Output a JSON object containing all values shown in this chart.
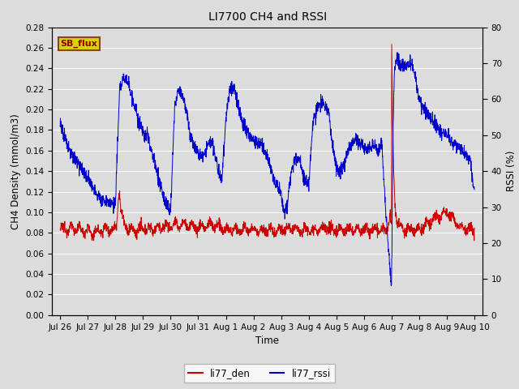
{
  "title": "LI7700 CH4 and RSSI",
  "ylabel_left": "CH4 Density (mmol/m3)",
  "ylabel_right": "RSSI (%)",
  "xlabel": "Time",
  "ylim_left": [
    0.0,
    0.28
  ],
  "ylim_right": [
    0,
    80
  ],
  "yticks_left": [
    0.0,
    0.02,
    0.04,
    0.06,
    0.08,
    0.1,
    0.12,
    0.14,
    0.16,
    0.18,
    0.2,
    0.22,
    0.24,
    0.26,
    0.28
  ],
  "yticks_right": [
    0,
    10,
    20,
    30,
    40,
    50,
    60,
    70,
    80
  ],
  "bg_color": "#dcdcdc",
  "grid_color": "#ffffff",
  "line_ch4_color": "#cc0000",
  "line_rssi_color": "#0000cc",
  "legend_label_ch4": "li77_den",
  "legend_label_rssi": "li77_rssi",
  "annotation_text": "SB_flux",
  "annotation_bg": "#d4d400",
  "annotation_border": "#8B4513",
  "rssi_key_t": [
    0,
    0.15,
    0.4,
    0.7,
    1.0,
    1.3,
    1.5,
    1.7,
    2.0,
    2.15,
    2.3,
    2.5,
    2.8,
    3.0,
    3.15,
    3.3,
    3.6,
    3.8,
    4.0,
    4.15,
    4.3,
    4.5,
    4.7,
    4.85,
    5.0,
    5.2,
    5.35,
    5.5,
    5.7,
    5.85,
    6.0,
    6.15,
    6.3,
    6.5,
    6.65,
    6.8,
    7.0,
    7.15,
    7.3,
    7.5,
    7.65,
    7.8,
    8.0,
    8.1,
    8.2,
    8.35,
    8.5,
    8.65,
    8.8,
    9.0,
    9.15,
    9.3,
    9.5,
    9.7,
    9.85,
    10.0,
    10.2,
    10.35,
    10.5,
    10.7,
    10.85,
    11.0,
    11.15,
    11.3,
    11.5,
    11.65,
    11.8,
    12.0,
    12.05,
    12.1,
    12.2,
    12.3,
    12.5,
    12.7,
    12.85,
    13.0,
    13.2,
    13.5,
    13.7,
    13.85,
    14.0,
    14.2,
    14.5,
    14.7,
    14.85,
    15.0
  ],
  "rssi_key_v": [
    53,
    50,
    45,
    42,
    38,
    34,
    32,
    31,
    31,
    63,
    66,
    64,
    55,
    50,
    50,
    46,
    37,
    31,
    29,
    59,
    63,
    60,
    50,
    47,
    45,
    44,
    47,
    48,
    41,
    37,
    55,
    63,
    63,
    56,
    53,
    50,
    49,
    48,
    47,
    44,
    40,
    36,
    34,
    29,
    30,
    39,
    43,
    44,
    38,
    36,
    53,
    58,
    59,
    57,
    48,
    41,
    40,
    44,
    47,
    49,
    48,
    47,
    46,
    47,
    46,
    47,
    28,
    7,
    50,
    68,
    72,
    70,
    69,
    70,
    67,
    60,
    57,
    54,
    52,
    51,
    50,
    48,
    46,
    44,
    43,
    34
  ],
  "ch4_key_t": [
    0,
    0.3,
    0.5,
    0.7,
    1.0,
    1.2,
    1.5,
    1.8,
    2.0,
    2.05,
    2.1,
    2.15,
    2.2,
    2.35,
    2.5,
    2.7,
    3.0,
    3.5,
    4.0,
    4.5,
    5.0,
    5.5,
    6.0,
    6.5,
    7.0,
    7.5,
    8.0,
    8.5,
    9.0,
    9.5,
    10.0,
    10.5,
    11.0,
    11.5,
    11.8,
    11.85,
    11.9,
    11.95,
    12.0,
    12.1,
    12.2,
    12.5,
    13.0,
    13.5,
    14.0,
    14.5,
    15.0
  ],
  "ch4_key_v": [
    0.083,
    0.084,
    0.085,
    0.083,
    0.082,
    0.079,
    0.083,
    0.084,
    0.083,
    0.09,
    0.115,
    0.122,
    0.1,
    0.086,
    0.083,
    0.082,
    0.083,
    0.085,
    0.087,
    0.088,
    0.085,
    0.088,
    0.083,
    0.083,
    0.083,
    0.082,
    0.083,
    0.084,
    0.083,
    0.083,
    0.083,
    0.083,
    0.083,
    0.083,
    0.082,
    0.085,
    0.09,
    0.1,
    0.08,
    0.083,
    0.085,
    0.083,
    0.083,
    0.093,
    0.1,
    0.085,
    0.083
  ],
  "seed": 12345
}
